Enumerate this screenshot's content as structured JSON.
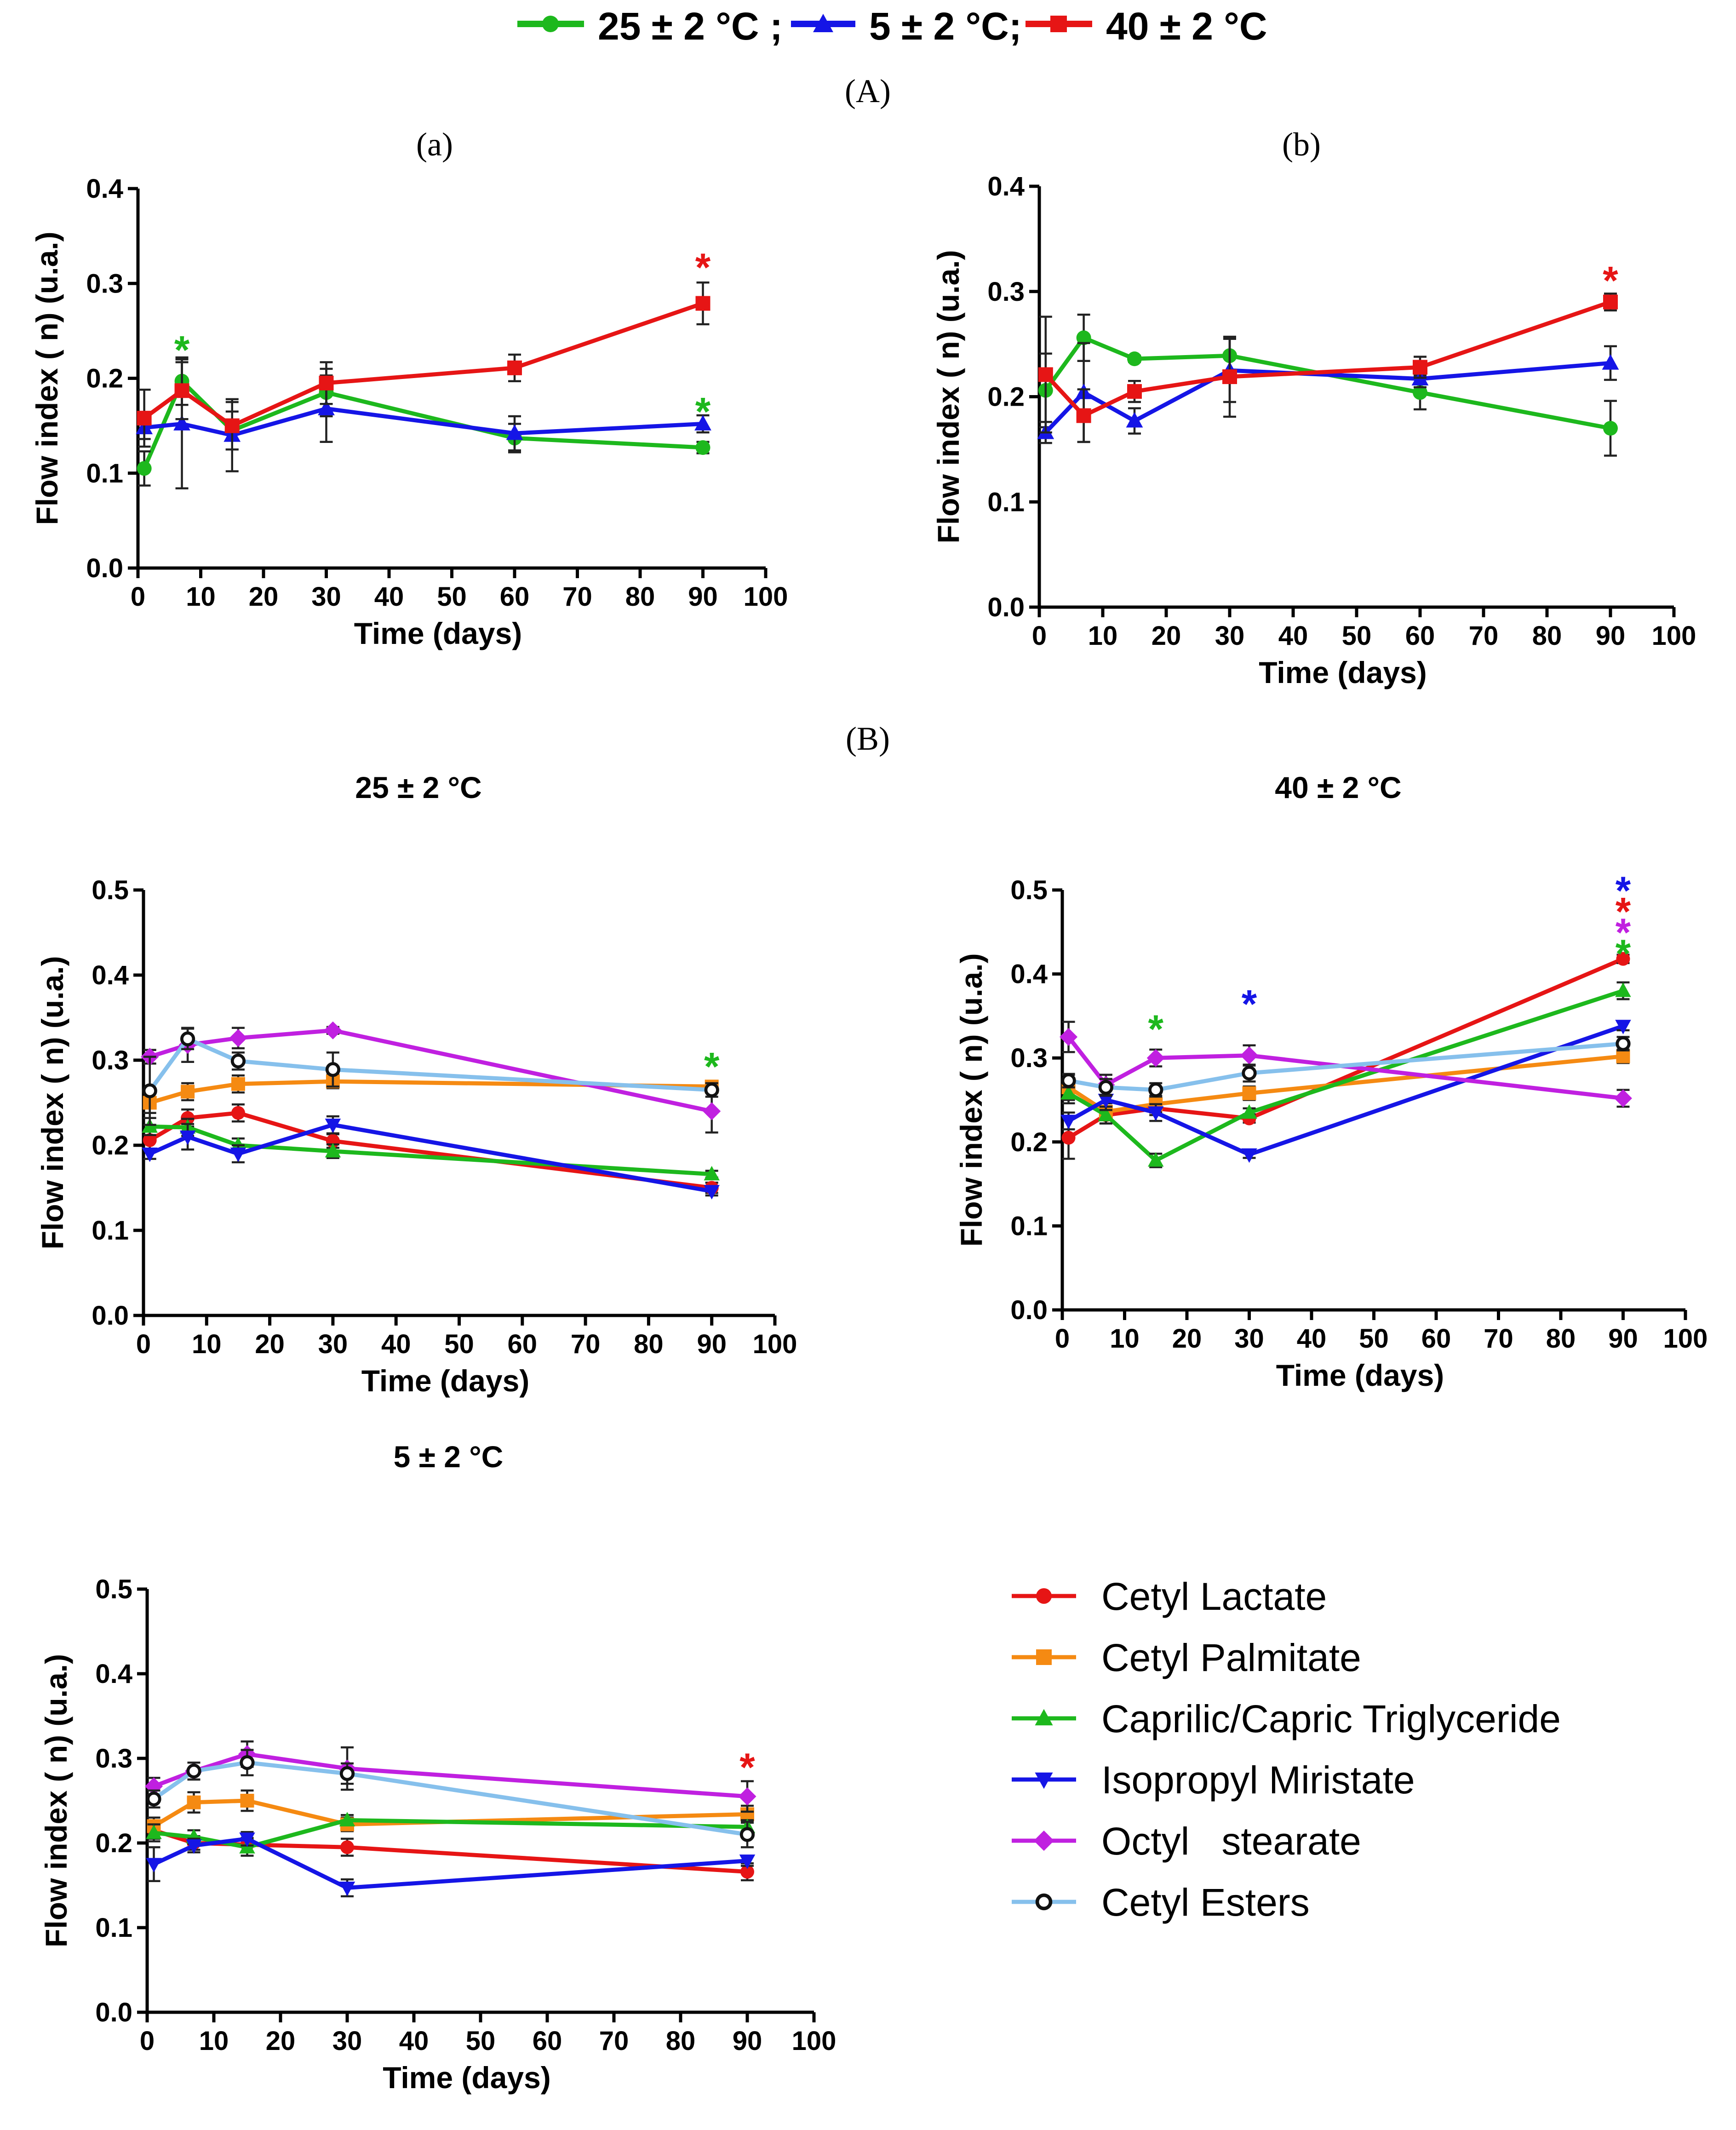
{
  "figure": {
    "panel_A_label": "(A)",
    "panel_B_label": "(B)",
    "sub_a_label": "(a)",
    "sub_b_label": "(b)"
  },
  "top_legend": [
    {
      "label": "25 ± 2 °C ;",
      "color": "#1db81d",
      "marker": "circle"
    },
    {
      "label": "5 ± 2 °C;",
      "color": "#1515e6",
      "marker": "triangle"
    },
    {
      "label": "40 ± 2 °C",
      "color": "#e61515",
      "marker": "square"
    }
  ],
  "colors": {
    "red": "#e61515",
    "green": "#1db81d",
    "blue": "#1515e6",
    "orange": "#f58a12",
    "magenta": "#c020e0",
    "lightblue": "#86c0ec"
  },
  "bottom_legend": [
    {
      "label": "Cetyl Lactate",
      "color": "#e61515",
      "marker": "circle"
    },
    {
      "label": "Cetyl Palmitate",
      "color": "#f58a12",
      "marker": "square"
    },
    {
      "label": "Caprilic/Capric Triglyceride",
      "color": "#1db81d",
      "marker": "triangle"
    },
    {
      "label": "Isopropyl Miristate",
      "color": "#1515e6",
      "marker": "tri-down"
    },
    {
      "label": "Octyl   stearate",
      "color": "#c020e0",
      "marker": "diamond"
    },
    {
      "label": "Cetyl Esters",
      "color": "#86c0ec",
      "marker": "open-circle"
    }
  ],
  "chart_data": [
    {
      "id": "a",
      "type": "line",
      "title": "(a)",
      "xlabel": "Time (days)",
      "ylabel": "Flow index ( n) (u.a.)",
      "xlim": [
        0,
        100
      ],
      "ylim": [
        0,
        0.4
      ],
      "xticks": [
        0,
        10,
        20,
        30,
        40,
        50,
        60,
        70,
        80,
        90,
        100
      ],
      "yticks": [
        0.0,
        0.1,
        0.2,
        0.3,
        0.4
      ],
      "x": [
        1,
        7,
        15,
        30,
        60,
        90
      ],
      "series": [
        {
          "name": "25 ± 2 °C",
          "color": "#1db81d",
          "marker": "circle",
          "values": [
            0.105,
            0.197,
            0.145,
            0.185,
            0.137,
            0.127
          ],
          "errors": [
            0.018,
            0.025,
            0.02,
            0.025,
            0.015,
            0.006
          ]
        },
        {
          "name": "5 ± 2 °C",
          "color": "#1515e6",
          "marker": "triangle",
          "values": [
            0.148,
            0.152,
            0.14,
            0.168,
            0.142,
            0.152
          ],
          "errors": [
            0.012,
            0.068,
            0.038,
            0.035,
            0.018,
            0.009
          ]
        },
        {
          "name": "40 ± 2 °C",
          "color": "#e61515",
          "marker": "square",
          "values": [
            0.158,
            0.187,
            0.15,
            0.195,
            0.211,
            0.279
          ],
          "errors": [
            0.03,
            0.03,
            0.025,
            0.022,
            0.014,
            0.022
          ]
        }
      ],
      "annotations": [
        {
          "x": 7,
          "y": 0.235,
          "text": "*",
          "color": "#1db81d"
        },
        {
          "x": 90,
          "y": 0.322,
          "text": "*",
          "color": "#e61515"
        },
        {
          "x": 90,
          "y": 0.17,
          "text": "*",
          "color": "#1db81d"
        }
      ]
    },
    {
      "id": "b",
      "type": "line",
      "title": "(b)",
      "xlabel": "Time (days)",
      "ylabel": "Flow index ( n) (u.a.)",
      "xlim": [
        0,
        100
      ],
      "ylim": [
        0,
        0.4
      ],
      "xticks": [
        0,
        10,
        20,
        30,
        40,
        50,
        60,
        70,
        80,
        90,
        100
      ],
      "yticks": [
        0.0,
        0.1,
        0.2,
        0.3,
        0.4
      ],
      "x": [
        1,
        7,
        15,
        30,
        60,
        90
      ],
      "series": [
        {
          "name": "25 ± 2 °C",
          "color": "#1db81d",
          "marker": "circle",
          "values": [
            0.206,
            0.256,
            0.236,
            0.239,
            0.204,
            0.17
          ],
          "errors": [
            0.035,
            0.022,
            0.003,
            0.017,
            0.016,
            0.026
          ]
        },
        {
          "name": "5 ± 2 °C",
          "color": "#1515e6",
          "marker": "triangle",
          "values": [
            0.166,
            0.204,
            0.177,
            0.225,
            0.217,
            0.232
          ],
          "errors": [
            0.01,
            0.047,
            0.012,
            0.03,
            0.008,
            0.016
          ]
        },
        {
          "name": "40 ± 2 °C",
          "color": "#e61515",
          "marker": "square",
          "values": [
            0.221,
            0.182,
            0.205,
            0.219,
            0.228,
            0.29
          ],
          "errors": [
            0.055,
            0.025,
            0.01,
            0.038,
            0.01,
            0.008
          ]
        }
      ],
      "annotations": [
        {
          "x": 90,
          "y": 0.315,
          "text": "*",
          "color": "#e61515"
        }
      ]
    },
    {
      "id": "b25",
      "type": "line",
      "title": "25 ± 2 °C",
      "xlabel": "Time (days)",
      "ylabel": "Flow index ( n) (u.a.)",
      "xlim": [
        0,
        100
      ],
      "ylim": [
        0,
        0.5
      ],
      "xticks": [
        0,
        10,
        20,
        30,
        40,
        50,
        60,
        70,
        80,
        90,
        100
      ],
      "yticks": [
        0.0,
        0.1,
        0.2,
        0.3,
        0.4,
        0.5
      ],
      "x": [
        1,
        7,
        15,
        30,
        90
      ],
      "series": [
        {
          "name": "Cetyl Lactate",
          "color": "#e61515",
          "marker": "circle",
          "values": [
            0.206,
            0.232,
            0.238,
            0.205,
            0.15
          ],
          "errors": [
            0.012,
            0.01,
            0.01,
            0.008,
            0.006
          ]
        },
        {
          "name": "Cetyl Palmitate",
          "color": "#f58a12",
          "marker": "square",
          "values": [
            0.25,
            0.263,
            0.272,
            0.275,
            0.269
          ],
          "errors": [
            0.012,
            0.01,
            0.01,
            0.008,
            0.005
          ]
        },
        {
          "name": "Caprilic/Capric Triglyceride",
          "color": "#1db81d",
          "marker": "triangle",
          "values": [
            0.222,
            0.221,
            0.2,
            0.193,
            0.166
          ],
          "errors": [
            0.01,
            0.01,
            0.008,
            0.008,
            0.004
          ]
        },
        {
          "name": "Isopropyl Miristate",
          "color": "#1515e6",
          "marker": "tri-down",
          "values": [
            0.19,
            0.21,
            0.19,
            0.224,
            0.146
          ],
          "errors": [
            0.006,
            0.015,
            0.01,
            0.01,
            0.005
          ]
        },
        {
          "name": "Octyl   stearate",
          "color": "#c020e0",
          "marker": "diamond",
          "values": [
            0.304,
            0.318,
            0.326,
            0.335,
            0.24
          ],
          "errors": [
            0.008,
            0.02,
            0.012,
            0.004,
            0.025
          ]
        },
        {
          "name": "Cetyl Esters",
          "color": "#86c0ec",
          "marker": "open-circle",
          "values": [
            0.264,
            0.325,
            0.299,
            0.289,
            0.265
          ],
          "errors": [
            0.04,
            0.012,
            0.01,
            0.02,
            0.008
          ]
        }
      ],
      "annotations": [
        {
          "x": 90,
          "y": 0.298,
          "text": "*",
          "color": "#1db81d"
        }
      ]
    },
    {
      "id": "b40",
      "type": "line",
      "title": "40 ± 2 °C",
      "xlabel": "Time (days)",
      "ylabel": "Flow index ( n) (u.a.)",
      "xlim": [
        0,
        100
      ],
      "ylim": [
        0,
        0.5
      ],
      "xticks": [
        0,
        10,
        20,
        30,
        40,
        50,
        60,
        70,
        80,
        90,
        100
      ],
      "yticks": [
        0.0,
        0.1,
        0.2,
        0.3,
        0.4,
        0.5
      ],
      "x": [
        1,
        7,
        15,
        30,
        90
      ],
      "series": [
        {
          "name": "Cetyl Lactate",
          "color": "#e61515",
          "marker": "circle",
          "values": [
            0.205,
            0.232,
            0.24,
            0.228,
            0.418
          ],
          "errors": [
            0.025,
            0.01,
            0.008,
            0.005,
            0.005
          ]
        },
        {
          "name": "Cetyl Palmitate",
          "color": "#f58a12",
          "marker": "square",
          "values": [
            0.265,
            0.236,
            0.245,
            0.258,
            0.302
          ],
          "errors": [
            0.015,
            0.01,
            0.01,
            0.008,
            0.008
          ]
        },
        {
          "name": "Caprilic/Capric Triglyceride",
          "color": "#1db81d",
          "marker": "triangle",
          "values": [
            0.258,
            0.232,
            0.178,
            0.235,
            0.38
          ],
          "errors": [
            0.012,
            0.01,
            0.008,
            0.005,
            0.01
          ]
        },
        {
          "name": "Isopropyl Miristate",
          "color": "#1515e6",
          "marker": "tri-down",
          "values": [
            0.225,
            0.25,
            0.235,
            0.185,
            0.338
          ],
          "errors": [
            0.01,
            0.012,
            0.01,
            0.004,
            0.005
          ]
        },
        {
          "name": "Octyl   stearate",
          "color": "#c020e0",
          "marker": "diamond",
          "values": [
            0.325,
            0.268,
            0.3,
            0.303,
            0.252
          ],
          "errors": [
            0.018,
            0.012,
            0.01,
            0.012,
            0.01
          ]
        },
        {
          "name": "Cetyl Esters",
          "color": "#86c0ec",
          "marker": "open-circle",
          "values": [
            0.273,
            0.265,
            0.262,
            0.282,
            0.317
          ],
          "errors": [
            0.008,
            0.01,
            0.008,
            0.01,
            0.008
          ]
        }
      ],
      "annotations": [
        {
          "x": 15,
          "y": 0.34,
          "text": "*",
          "color": "#1db81d"
        },
        {
          "x": 30,
          "y": 0.37,
          "text": "*",
          "color": "#1515e6"
        },
        {
          "x": 90,
          "y": 0.505,
          "text": "*",
          "color": "#1515e6"
        },
        {
          "x": 90,
          "y": 0.48,
          "text": "*",
          "color": "#e61515"
        },
        {
          "x": 90,
          "y": 0.455,
          "text": "*",
          "color": "#c020e0"
        },
        {
          "x": 90,
          "y": 0.43,
          "text": "*",
          "color": "#1db81d"
        }
      ]
    },
    {
      "id": "b5",
      "type": "line",
      "title": "5 ± 2 °C",
      "xlabel": "Time (days)",
      "ylabel": "Flow index ( n) (u.a.)",
      "xlim": [
        0,
        100
      ],
      "ylim": [
        0,
        0.5
      ],
      "xticks": [
        0,
        10,
        20,
        30,
        40,
        50,
        60,
        70,
        80,
        90,
        100
      ],
      "yticks": [
        0.0,
        0.1,
        0.2,
        0.3,
        0.4,
        0.5
      ],
      "x": [
        1,
        7,
        15,
        30,
        90
      ],
      "series": [
        {
          "name": "Cetyl Lactate",
          "color": "#e61515",
          "marker": "circle",
          "values": [
            0.215,
            0.2,
            0.198,
            0.195,
            0.166
          ],
          "errors": [
            0.01,
            0.008,
            0.008,
            0.01,
            0.01
          ]
        },
        {
          "name": "Cetyl Palmitate",
          "color": "#f58a12",
          "marker": "square",
          "values": [
            0.22,
            0.248,
            0.25,
            0.222,
            0.234
          ],
          "errors": [
            0.01,
            0.012,
            0.012,
            0.008,
            0.01
          ]
        },
        {
          "name": "Caprilic/Capric Triglyceride",
          "color": "#1db81d",
          "marker": "triangle",
          "values": [
            0.212,
            0.207,
            0.195,
            0.227,
            0.219
          ],
          "errors": [
            0.01,
            0.008,
            0.01,
            0.006,
            0.008
          ]
        },
        {
          "name": "Isopropyl Miristate",
          "color": "#1515e6",
          "marker": "tri-down",
          "values": [
            0.175,
            0.197,
            0.205,
            0.147,
            0.179
          ],
          "errors": [
            0.02,
            0.008,
            0.008,
            0.01,
            0.006
          ]
        },
        {
          "name": "Octyl   stearate",
          "color": "#c020e0",
          "marker": "diamond",
          "values": [
            0.267,
            0.285,
            0.305,
            0.288,
            0.255
          ],
          "errors": [
            0.01,
            0.01,
            0.015,
            0.025,
            0.018
          ]
        },
        {
          "name": "Cetyl Esters",
          "color": "#86c0ec",
          "marker": "open-circle",
          "values": [
            0.252,
            0.285,
            0.295,
            0.282,
            0.21
          ],
          "errors": [
            0.01,
            0.01,
            0.015,
            0.012,
            0.015
          ]
        }
      ],
      "annotations": [
        {
          "x": 90,
          "y": 0.295,
          "text": "*",
          "color": "#e61515"
        }
      ]
    }
  ]
}
